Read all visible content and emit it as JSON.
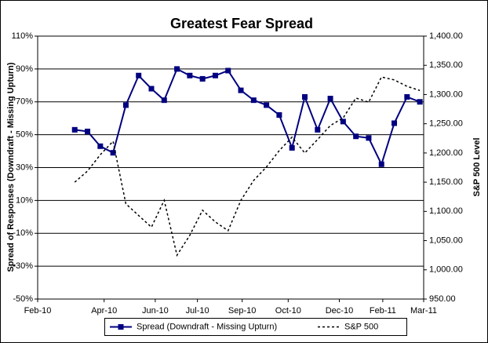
{
  "chart_data": {
    "type": "line",
    "title": "Greatest Fear Spread",
    "ylabel": "Spread of Responses (Downdraft - Missing Upturn)",
    "y2label": "S&P 500 Level",
    "categories": [
      null,
      null,
      null,
      null,
      null,
      null,
      null,
      null,
      null,
      null,
      null,
      null,
      null,
      null,
      null,
      null,
      null,
      null,
      null,
      null,
      null,
      null,
      null,
      null,
      null,
      null,
      null,
      null
    ],
    "xlim": [
      -2.9,
      27.3
    ],
    "xticks": [
      {
        "value": -2.9,
        "label": "Feb-10"
      },
      {
        "value": 2.3,
        "label": "Apr-10"
      },
      {
        "value": 6.3,
        "label": "Jun-10"
      },
      {
        "value": 9.6,
        "label": "Jul-10"
      },
      {
        "value": 13.1,
        "label": "Sep-10"
      },
      {
        "value": 16.7,
        "label": "Oct-10"
      },
      {
        "value": 20.7,
        "label": "Dec-10"
      },
      {
        "value": 24.1,
        "label": "Feb-11"
      },
      {
        "value": 27.3,
        "label": "Mar-11"
      }
    ],
    "ylim": [
      -50,
      110
    ],
    "yticks": [
      {
        "value": -50,
        "label": "-50%"
      },
      {
        "value": -30,
        "label": "-30%"
      },
      {
        "value": -10,
        "label": "-10%"
      },
      {
        "value": 10,
        "label": "10%"
      },
      {
        "value": 30,
        "label": "30%"
      },
      {
        "value": 50,
        "label": "50%"
      },
      {
        "value": 70,
        "label": "70%"
      },
      {
        "value": 90,
        "label": "90%"
      },
      {
        "value": 110,
        "label": "110%"
      }
    ],
    "y2lim": [
      950,
      1400
    ],
    "y2ticks": [
      {
        "value": 950,
        "label": "950.00"
      },
      {
        "value": 1000,
        "label": "1,000.00"
      },
      {
        "value": 1050,
        "label": "1,050.00"
      },
      {
        "value": 1100,
        "label": "1,100.00"
      },
      {
        "value": 1150,
        "label": "1,150.00"
      },
      {
        "value": 1200,
        "label": "1,200.00"
      },
      {
        "value": 1250,
        "label": "1,250.00"
      },
      {
        "value": 1300,
        "label": "1,300.00"
      },
      {
        "value": 1350,
        "label": "1,350.00"
      },
      {
        "value": 1400,
        "label": "1,400.00"
      }
    ],
    "grid": true,
    "legend": "bottom",
    "series": [
      {
        "name": "Spread (Downdraft - Missing Upturn)",
        "color": "#000080",
        "values": [
          53,
          52,
          43,
          39,
          68,
          86,
          78,
          71,
          90,
          86,
          84,
          86,
          89,
          77,
          71,
          68,
          62,
          42,
          73,
          53,
          72,
          58,
          49,
          48,
          32,
          57,
          73,
          70
        ]
      },
      {
        "name": "S&P 500",
        "color": "#000000",
        "axis": "y2",
        "values": [
          1150,
          1169,
          1197,
          1220,
          1113,
          1093,
          1073,
          1119,
          1025,
          1059,
          1102,
          1082,
          1067,
          1119,
          1153,
          1176,
          1204,
          1227,
          1200,
          1223,
          1247,
          1260,
          1294,
          1287,
          1330,
          1325,
          1314,
          1307
        ]
      }
    ]
  }
}
